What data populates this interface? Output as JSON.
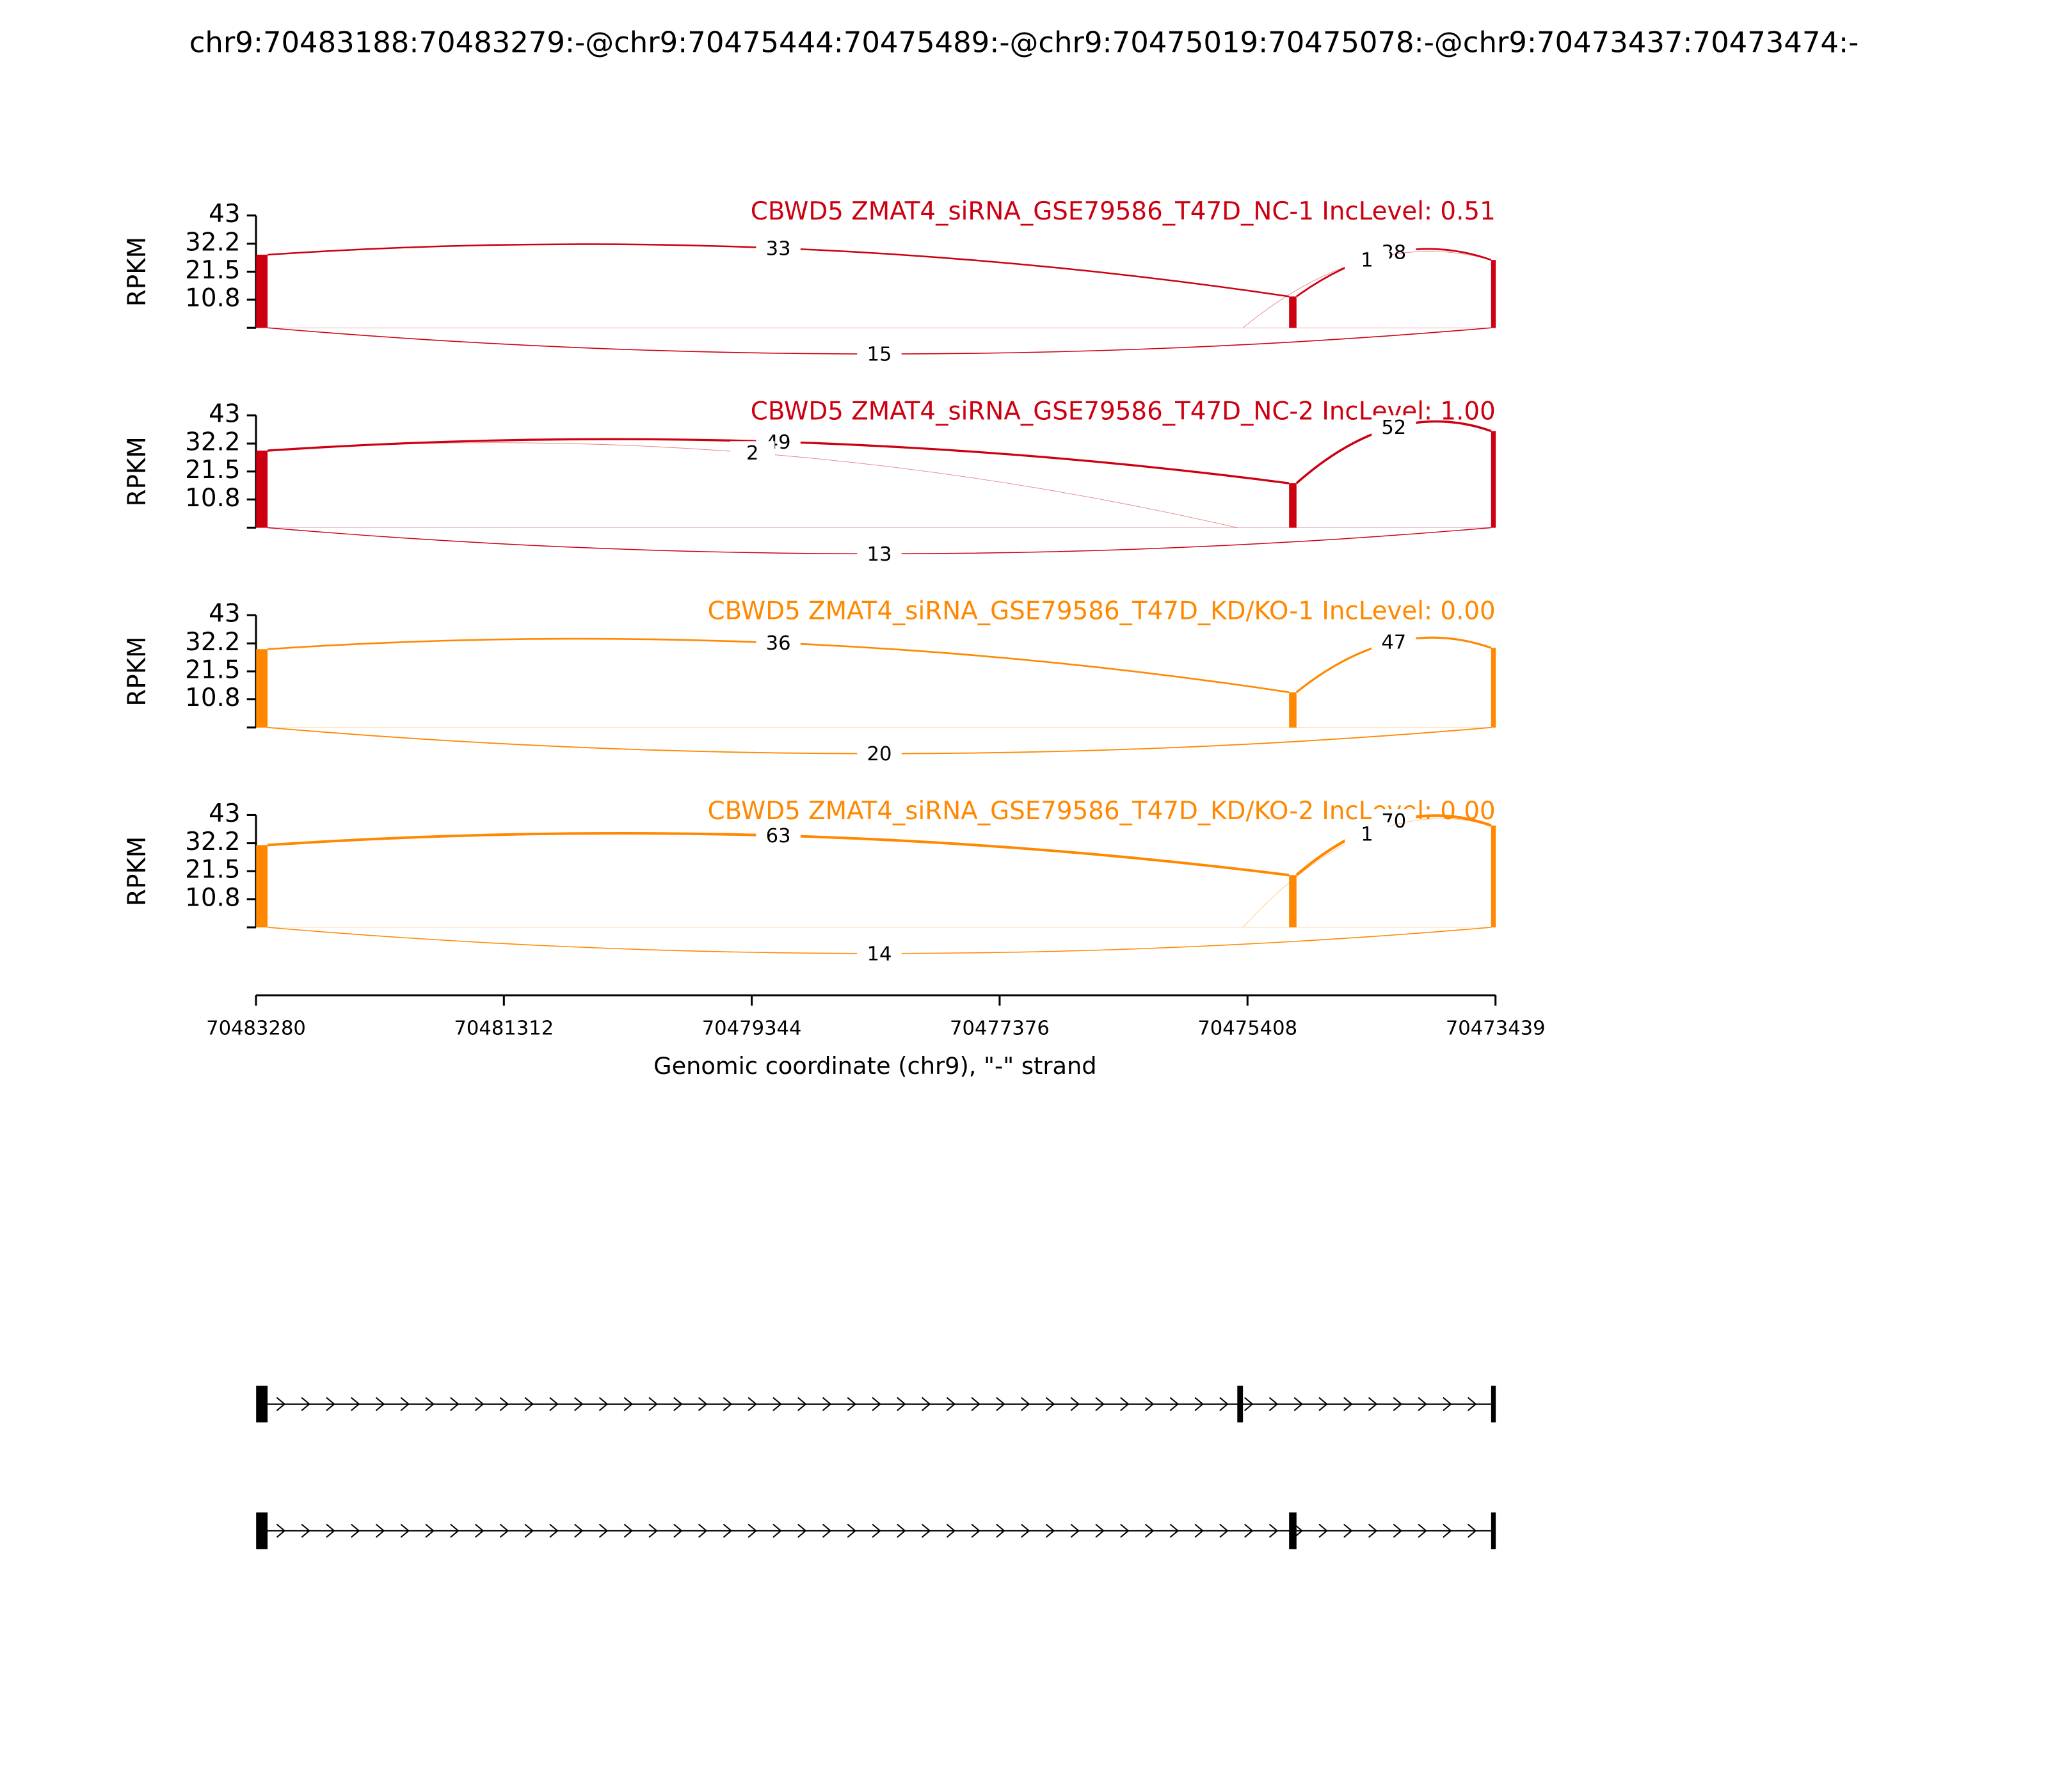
{
  "chart_data": {
    "type": "sashimi",
    "title": "chr9:70483188:70483279:-@chr9:70475444:70475489:-@chr9:70475019:70475078:-@chr9:70473437:70473474:-",
    "xlabel": "Genomic coordinate (chr9), \"-\" strand",
    "xlim": [
      70483280,
      70473439
    ],
    "xticks": [
      70483280,
      70481312,
      70479344,
      70477376,
      70475408,
      70473439
    ],
    "tracks": [
      {
        "label": "CBWD5 ZMAT4_siRNA_GSE79586_T47D_NC-1 IncLevel: 0.51",
        "color": "#cc0011",
        "ylabel": "RPKM",
        "ylim": [
          0,
          43
        ],
        "yticks": [
          10.8,
          21.5,
          32.2,
          43
        ],
        "coverage": [
          {
            "start": 70483188,
            "end": 70483279,
            "value": 28
          },
          {
            "start": 70475019,
            "end": 70475078,
            "value": 12
          },
          {
            "start": 70473437,
            "end": 70473474,
            "value": 26
          }
        ],
        "junctions": [
          {
            "from": 70483188,
            "to": 70475078,
            "count": 33
          },
          {
            "from": 70475019,
            "to": 70473474,
            "count": 38
          },
          {
            "from": 70475444,
            "to": 70473474,
            "count": 1
          },
          {
            "from": 70483188,
            "to": 70473474,
            "count": 15
          }
        ]
      },
      {
        "label": "CBWD5 ZMAT4_siRNA_GSE79586_T47D_NC-2 IncLevel: 1.00",
        "color": "#cc0011",
        "ylabel": "RPKM",
        "ylim": [
          0,
          43
        ],
        "yticks": [
          10.8,
          21.5,
          32.2,
          43
        ],
        "coverage": [
          {
            "start": 70483188,
            "end": 70483279,
            "value": 29.5
          },
          {
            "start": 70475019,
            "end": 70475078,
            "value": 17
          },
          {
            "start": 70473437,
            "end": 70473474,
            "value": 37
          }
        ],
        "junctions": [
          {
            "from": 70483188,
            "to": 70475078,
            "count": 49
          },
          {
            "from": 70483188,
            "to": 70475489,
            "count": 2
          },
          {
            "from": 70475019,
            "to": 70473474,
            "count": 52
          },
          {
            "from": 70483188,
            "to": 70473474,
            "count": 13
          }
        ]
      },
      {
        "label": "CBWD5 ZMAT4_siRNA_GSE79586_T47D_KD/KO-1 IncLevel: 0.00",
        "color": "#ff8800",
        "ylabel": "RPKM",
        "ylim": [
          0,
          43
        ],
        "yticks": [
          10.8,
          21.5,
          32.2,
          43
        ],
        "coverage": [
          {
            "start": 70483188,
            "end": 70483279,
            "value": 30
          },
          {
            "start": 70475019,
            "end": 70475078,
            "value": 13.5
          },
          {
            "start": 70473437,
            "end": 70473474,
            "value": 30.5
          }
        ],
        "junctions": [
          {
            "from": 70483188,
            "to": 70475078,
            "count": 36
          },
          {
            "from": 70475019,
            "to": 70473474,
            "count": 47
          },
          {
            "from": 70483188,
            "to": 70473474,
            "count": 20
          }
        ]
      },
      {
        "label": "CBWD5 ZMAT4_siRNA_GSE79586_T47D_KD/KO-2 IncLevel: 0.00",
        "color": "#ff8800",
        "ylabel": "RPKM",
        "ylim": [
          0,
          43
        ],
        "yticks": [
          10.8,
          21.5,
          32.2,
          43
        ],
        "coverage": [
          {
            "start": 70483188,
            "end": 70483279,
            "value": 31.5
          },
          {
            "start": 70475019,
            "end": 70475078,
            "value": 20
          },
          {
            "start": 70473437,
            "end": 70473474,
            "value": 39
          }
        ],
        "junctions": [
          {
            "from": 70483188,
            "to": 70475078,
            "count": 63
          },
          {
            "from": 70475019,
            "to": 70473474,
            "count": 70
          },
          {
            "from": 70475444,
            "to": 70473474,
            "count": 1
          },
          {
            "from": 70483188,
            "to": 70473474,
            "count": 14
          }
        ]
      }
    ],
    "transcripts": [
      {
        "exons": [
          {
            "start": 70483188,
            "end": 70483279
          },
          {
            "start": 70475444,
            "end": 70475489
          },
          {
            "start": 70473437,
            "end": 70473474
          }
        ]
      },
      {
        "exons": [
          {
            "start": 70483188,
            "end": 70483279
          },
          {
            "start": 70475019,
            "end": 70475078
          },
          {
            "start": 70473437,
            "end": 70473474
          }
        ]
      }
    ]
  }
}
